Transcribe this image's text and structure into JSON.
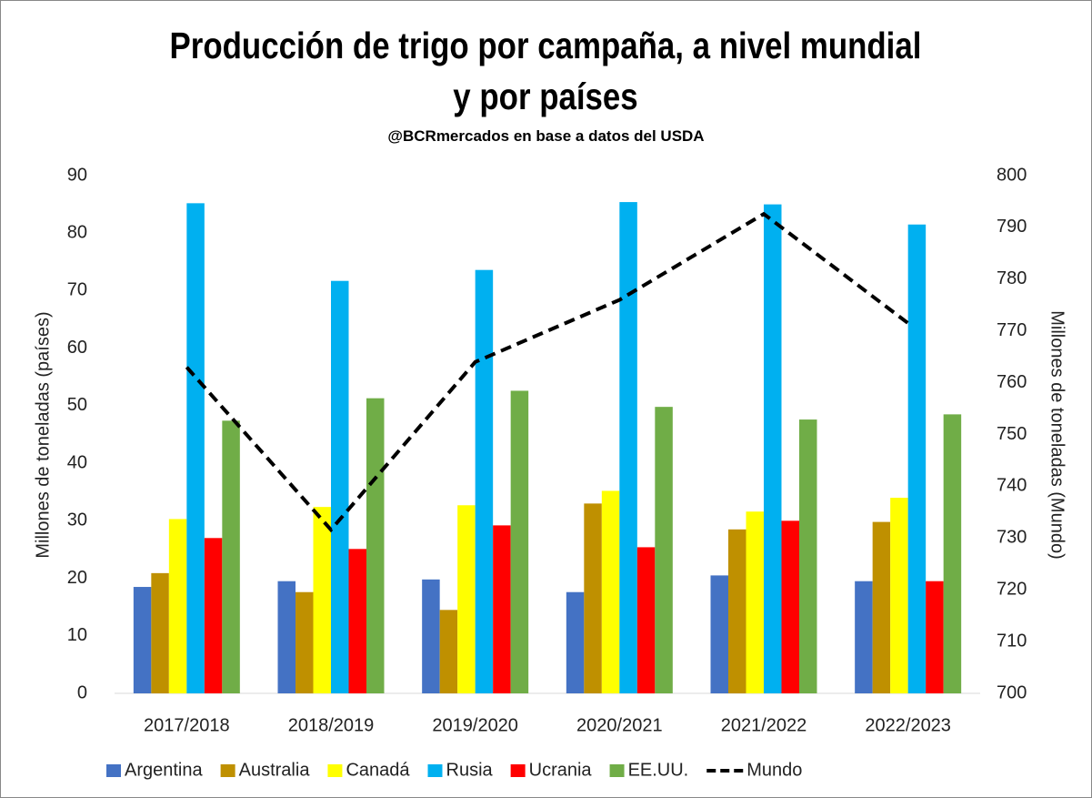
{
  "chart_data": {
    "type": "bar",
    "title": "Producción de trigo por campaña, a nivel mundial y por países",
    "subtitle": "@BCRmercados en base a datos del USDA",
    "y_label": "Millones de toneladas (países)",
    "y2_label": "Millones de toneladas (Mundo)",
    "categories": [
      "2017/2018",
      "2018/2019",
      "2019/2020",
      "2020/2021",
      "2021/2022",
      "2022/2023"
    ],
    "series": [
      {
        "name": "Argentina",
        "color": "#4472c4",
        "values": [
          18.5,
          19.5,
          19.8,
          17.6,
          20.5,
          19.5
        ]
      },
      {
        "name": "Australia",
        "color": "#bf9000",
        "values": [
          20.9,
          17.6,
          14.5,
          33.0,
          28.5,
          29.8
        ]
      },
      {
        "name": "Canadá",
        "color": "#ffff00",
        "values": [
          30.3,
          32.4,
          32.7,
          35.2,
          31.6,
          34.0
        ]
      },
      {
        "name": "Rusia",
        "color": "#00b0f0",
        "values": [
          85.2,
          71.7,
          73.6,
          85.4,
          85.0,
          81.5
        ]
      },
      {
        "name": "Ucrania",
        "color": "#ff0000",
        "values": [
          27.0,
          25.1,
          29.2,
          25.4,
          30.0,
          19.5
        ]
      },
      {
        "name": "EE.UU.",
        "color": "#70ad47",
        "values": [
          47.4,
          51.3,
          52.6,
          49.8,
          47.6,
          48.5
        ]
      },
      {
        "name": "Mundo",
        "color": "#000000",
        "type": "line",
        "dashed": true,
        "axis": "y2",
        "values": [
          763,
          731.6,
          764,
          776,
          792.6,
          771.5
        ]
      }
    ],
    "ylim": [
      0,
      90
    ],
    "yticks": [
      0,
      10,
      20,
      30,
      40,
      50,
      60,
      70,
      80,
      90
    ],
    "y2lim": [
      700,
      800
    ],
    "y2ticks": [
      700,
      710,
      720,
      730,
      740,
      750,
      760,
      770,
      780,
      790,
      800
    ],
    "grid": false,
    "legend": "bottom"
  }
}
